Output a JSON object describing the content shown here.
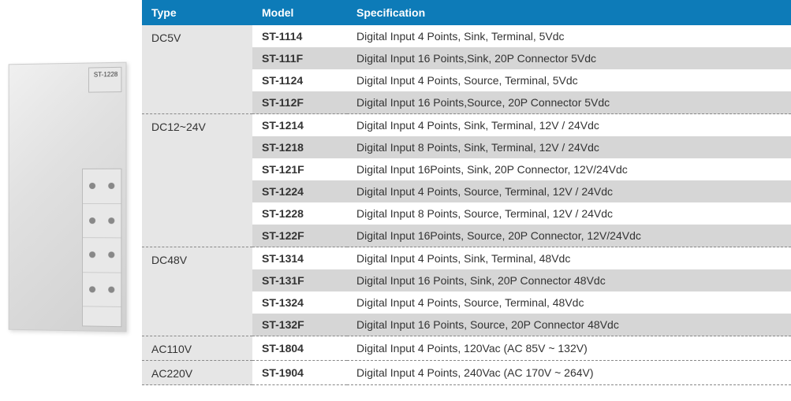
{
  "colors": {
    "header_bg": "#0d7bb8",
    "header_text": "#ffffff",
    "type_bg": "#e6e6e6",
    "row_bg_odd": "#ffffff",
    "row_bg_even": "#d6d6d6",
    "dashed_border": "#888888",
    "text": "#333333"
  },
  "headers": {
    "type": "Type",
    "model": "Model",
    "spec": "Specification"
  },
  "image_label": "ST-1228",
  "groups": [
    {
      "type": "DC5V",
      "rows": [
        {
          "model": "ST-1114",
          "spec": "Digital Input 4 Points, Sink, Terminal, 5Vdc"
        },
        {
          "model": "ST-111F",
          "spec": "Digital Input 16 Points,Sink, 20P Connector 5Vdc"
        },
        {
          "model": "ST-1124",
          "spec": "Digital Input 4 Points, Source, Terminal, 5Vdc"
        },
        {
          "model": "ST-112F",
          "spec": "Digital Input 16 Points,Source, 20P Connector 5Vdc"
        }
      ]
    },
    {
      "type": "DC12~24V",
      "rows": [
        {
          "model": "ST-1214",
          "spec": "Digital Input 4 Points, Sink, Terminal, 12V / 24Vdc"
        },
        {
          "model": "ST-1218",
          "spec": "Digital Input 8 Points, Sink, Terminal, 12V / 24Vdc"
        },
        {
          "model": "ST-121F",
          "spec": "Digital Input 16Points, Sink, 20P Connector, 12V/24Vdc"
        },
        {
          "model": "ST-1224",
          "spec": "Digital Input 4 Points, Source, Terminal, 12V / 24Vdc"
        },
        {
          "model": "ST-1228",
          "spec": "Digital Input 8 Points, Source, Terminal, 12V / 24Vdc"
        },
        {
          "model": "ST-122F",
          "spec": "Digital Input 16Points, Source, 20P Connector, 12V/24Vdc"
        }
      ]
    },
    {
      "type": "DC48V",
      "rows": [
        {
          "model": "ST-1314",
          "spec": "Digital Input 4 Points, Sink, Terminal, 48Vdc"
        },
        {
          "model": "ST-131F",
          "spec": "Digital Input 16 Points, Sink, 20P Connector 48Vdc"
        },
        {
          "model": "ST-1324",
          "spec": "Digital Input 4 Points, Source, Terminal, 48Vdc"
        },
        {
          "model": "ST-132F",
          "spec": "Digital Input 16 Points, Source, 20P Connector 48Vdc"
        }
      ]
    },
    {
      "type": "AC110V",
      "rows": [
        {
          "model": "ST-1804",
          "spec": "Digital Input 4 Points, 120Vac (AC 85V ~ 132V)"
        }
      ]
    },
    {
      "type": "AC220V",
      "rows": [
        {
          "model": "ST-1904",
          "spec": "Digital Input 4 Points, 240Vac (AC 170V ~ 264V)"
        }
      ]
    }
  ]
}
